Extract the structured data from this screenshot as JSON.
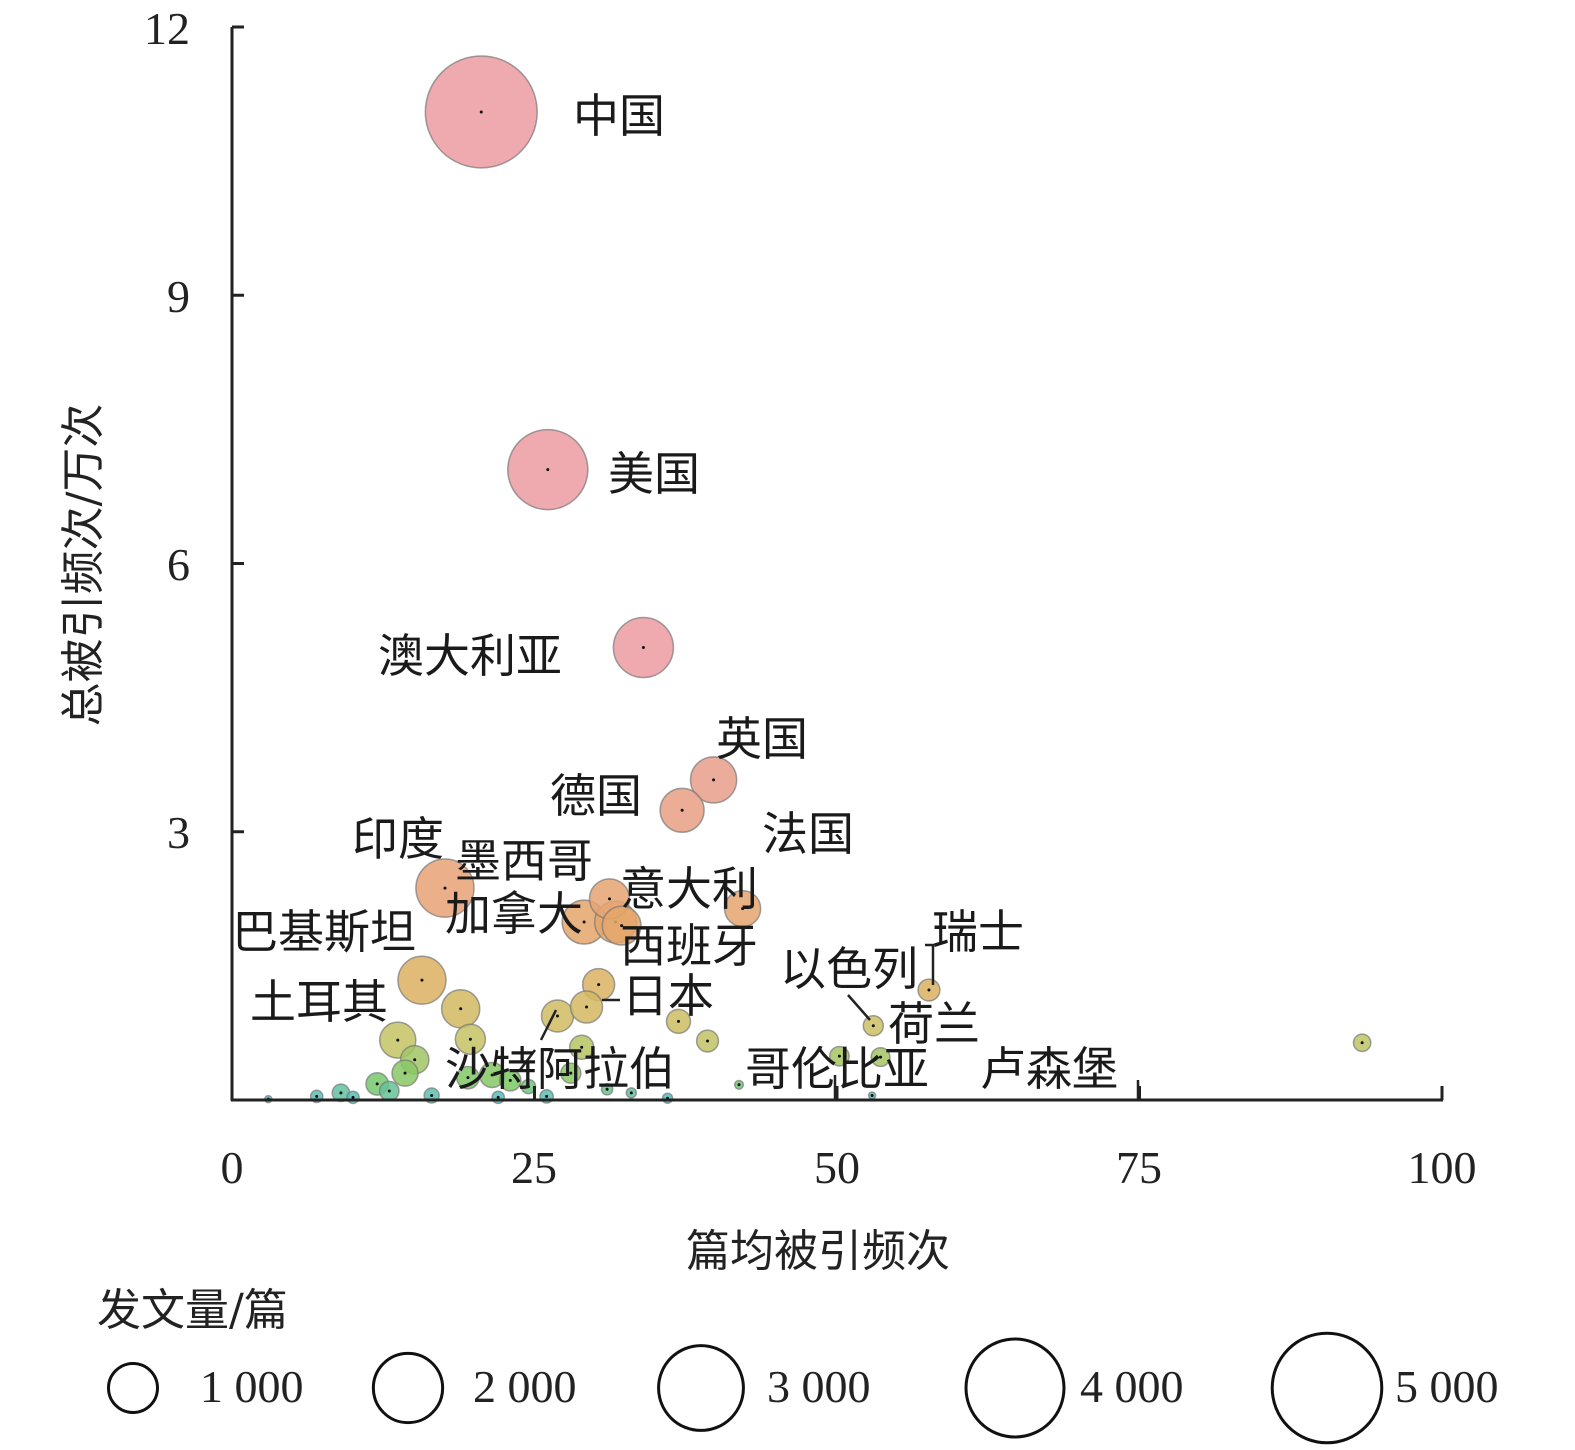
{
  "chart_data": {
    "type": "scatter",
    "subtype": "bubble",
    "xlabel": "篇均被引频次",
    "ylabel": "总被引频次/万次",
    "xlim": [
      0,
      100
    ],
    "ylim": [
      0,
      12
    ],
    "xticks": [
      "0",
      "25",
      "50",
      "75",
      "100"
    ],
    "yticks": [
      "3",
      "6",
      "9",
      "12"
    ],
    "grid": false,
    "legend": {
      "title": "发文量/篇",
      "placement": "bottom",
      "sizes": [
        1000,
        2000,
        3000,
        4000,
        5000
      ],
      "labels": [
        "1 000",
        "2 000",
        "3 000",
        "4 000",
        "5 000"
      ]
    },
    "points": [
      {
        "label": "中国",
        "x": 20.6,
        "y": 11.05,
        "papers": 5000
      },
      {
        "label": "美国",
        "x": 26.1,
        "y": 7.05,
        "papers": 2560
      },
      {
        "label": "澳大利亚",
        "x": 34.0,
        "y": 5.06,
        "papers": 1440
      },
      {
        "label": "英国",
        "x": 39.8,
        "y": 3.58,
        "papers": 850
      },
      {
        "label": "德国",
        "x": 37.2,
        "y": 3.24,
        "papers": 770
      },
      {
        "label": "法国",
        "x": 42.2,
        "y": 2.14,
        "papers": 520
      },
      {
        "label": "印度",
        "x": 17.6,
        "y": 2.37,
        "papers": 1350
      },
      {
        "label": "墨西哥",
        "x": 31.2,
        "y": 2.25,
        "papers": 640
      },
      {
        "label": "意大利",
        "x": 31.7,
        "y": 1.99,
        "papers": 700
      },
      {
        "label": "加拿大",
        "x": 29.1,
        "y": 1.99,
        "papers": 770
      },
      {
        "label": "西班牙",
        "x": 32.2,
        "y": 1.95,
        "papers": 600
      },
      {
        "label": "巴基斯坦",
        "x": 15.7,
        "y": 1.34,
        "papers": 920
      },
      {
        "label": "土耳其",
        "x": 13.7,
        "y": 0.67,
        "papers": 520
      },
      {
        "label": "日本",
        "x": 30.3,
        "y": 1.29,
        "papers": 410
      },
      {
        "label": "沙特阿拉伯",
        "x": 26.9,
        "y": 0.94,
        "papers": 410
      },
      {
        "label": "以色列",
        "x": 53.0,
        "y": 0.83,
        "papers": 160
      },
      {
        "label": "瑞士",
        "x": 57.6,
        "y": 1.23,
        "papers": 190
      },
      {
        "label": "荷兰",
        "x": 53.6,
        "y": 0.48,
        "papers": 140
      },
      {
        "label": "哥伦比亚",
        "x": 50.2,
        "y": 0.49,
        "papers": 150
      },
      {
        "label": "卢森堡",
        "x": 93.4,
        "y": 0.64,
        "papers": 120
      },
      {
        "label": "",
        "x": 18.9,
        "y": 1.02,
        "papers": 580
      },
      {
        "label": "",
        "x": 19.7,
        "y": 0.68,
        "papers": 360
      },
      {
        "label": "",
        "x": 15.1,
        "y": 0.45,
        "papers": 320
      },
      {
        "label": "",
        "x": 14.3,
        "y": 0.3,
        "papers": 270
      },
      {
        "label": "",
        "x": 29.3,
        "y": 1.04,
        "papers": 410
      },
      {
        "label": "",
        "x": 36.9,
        "y": 0.88,
        "papers": 230
      },
      {
        "label": "",
        "x": 39.3,
        "y": 0.66,
        "papers": 190
      },
      {
        "label": "",
        "x": 28.9,
        "y": 0.59,
        "papers": 230
      },
      {
        "label": "",
        "x": 19.5,
        "y": 0.25,
        "papers": 200
      },
      {
        "label": "",
        "x": 21.5,
        "y": 0.28,
        "papers": 250
      },
      {
        "label": "",
        "x": 23.0,
        "y": 0.22,
        "papers": 180
      },
      {
        "label": "",
        "x": 28.0,
        "y": 0.3,
        "papers": 160
      },
      {
        "label": "",
        "x": 12.0,
        "y": 0.18,
        "papers": 200
      },
      {
        "label": "",
        "x": 13.0,
        "y": 0.1,
        "papers": 150
      },
      {
        "label": "",
        "x": 9.0,
        "y": 0.08,
        "papers": 120
      },
      {
        "label": "",
        "x": 7.0,
        "y": 0.04,
        "papers": 60
      },
      {
        "label": "",
        "x": 10.0,
        "y": 0.03,
        "papers": 60
      },
      {
        "label": "",
        "x": 16.5,
        "y": 0.05,
        "papers": 90
      },
      {
        "label": "",
        "x": 24.5,
        "y": 0.15,
        "papers": 80
      },
      {
        "label": "",
        "x": 26.0,
        "y": 0.04,
        "papers": 70
      },
      {
        "label": "",
        "x": 31.0,
        "y": 0.12,
        "papers": 50
      },
      {
        "label": "",
        "x": 33.0,
        "y": 0.08,
        "papers": 40
      },
      {
        "label": "",
        "x": 41.9,
        "y": 0.17,
        "papers": 30
      },
      {
        "label": "",
        "x": 36.0,
        "y": 0.02,
        "papers": 40
      },
      {
        "label": "",
        "x": 22.0,
        "y": 0.03,
        "papers": 60
      },
      {
        "label": "",
        "x": 3.0,
        "y": 0.01,
        "papers": 20
      },
      {
        "label": "",
        "x": 52.9,
        "y": 0.05,
        "papers": 20
      }
    ]
  }
}
